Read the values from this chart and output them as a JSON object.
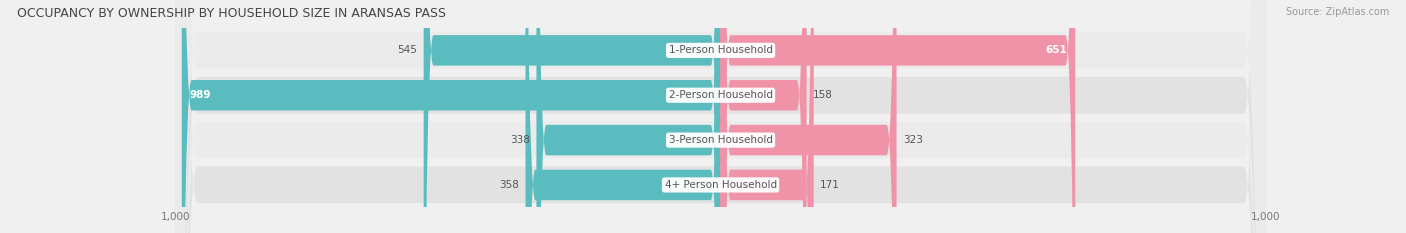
{
  "title": "OCCUPANCY BY OWNERSHIP BY HOUSEHOLD SIZE IN ARANSAS PASS",
  "source": "Source: ZipAtlas.com",
  "categories": [
    "1-Person Household",
    "2-Person Household",
    "3-Person Household",
    "4+ Person Household"
  ],
  "owner_values": [
    545,
    989,
    338,
    358
  ],
  "renter_values": [
    651,
    158,
    323,
    171
  ],
  "max_scale": 1000,
  "owner_color": "#5bbcbf",
  "renter_color": "#f093a8",
  "label_bg_color": "#ffffff",
  "fig_bg_color": "#f0f0f0",
  "row_bg_color": "#ebebeb",
  "row_alt_bg_color": "#e2e2e2",
  "title_fontsize": 9,
  "source_fontsize": 7,
  "tick_fontsize": 7.5,
  "bar_label_fontsize": 7.5,
  "legend_fontsize": 7.5,
  "figsize": [
    14.06,
    2.33
  ],
  "dpi": 100
}
